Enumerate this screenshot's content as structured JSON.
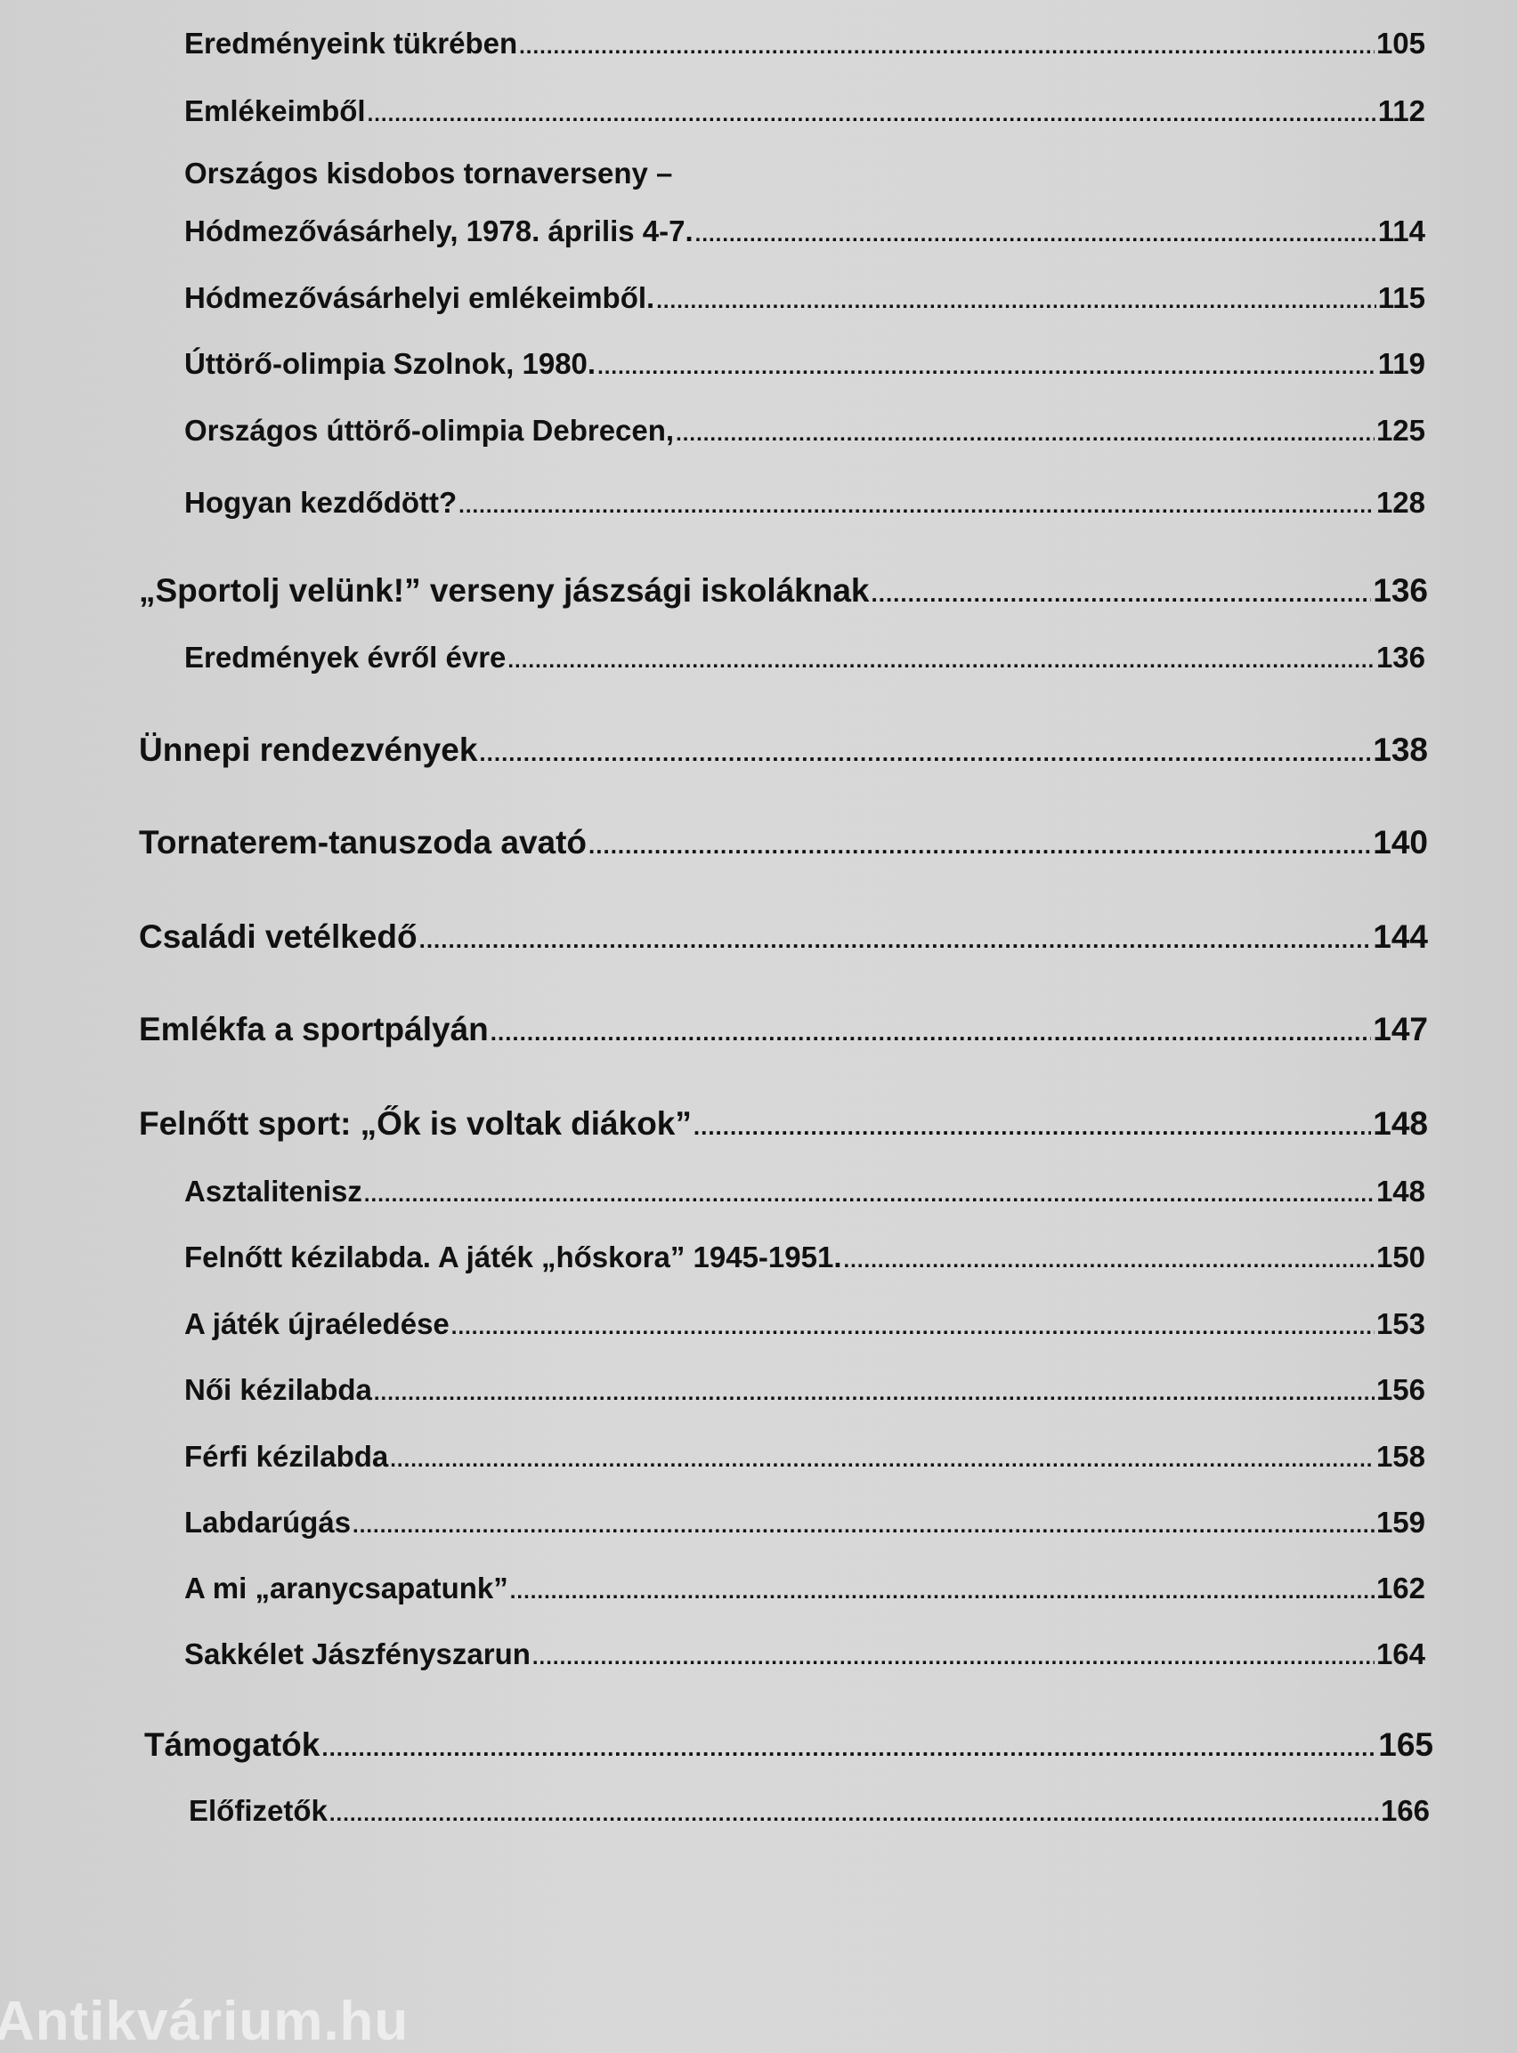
{
  "toc": [
    {
      "level": "sub",
      "title": "Eredményeink tükrében",
      "page": "105"
    },
    {
      "level": "sub",
      "title": "Emlékeimből",
      "page": "112"
    },
    {
      "level": "sub",
      "title": "Országos kisdobos tornaverseny –",
      "page": ""
    },
    {
      "level": "sub",
      "title": "Hódmezővásárhely, 1978. április 4-7.",
      "page": "114"
    },
    {
      "level": "sub",
      "title": "Hódmezővásárhelyi emlékeimből.",
      "page": "115"
    },
    {
      "level": "sub",
      "title": "Úttörő-olimpia Szolnok, 1980.",
      "page": "119"
    },
    {
      "level": "sub",
      "title": "Országos úttörő-olimpia Debrecen,",
      "page": "125"
    },
    {
      "level": "sub",
      "title": "Hogyan kezdődött?",
      "page": "128"
    },
    {
      "level": "main",
      "title": "„Sportolj velünk!” verseny jászsági iskoláknak",
      "page": "136"
    },
    {
      "level": "sub",
      "title": "Eredmények évről évre",
      "page": "136"
    },
    {
      "level": "main",
      "title": "Ünnepi rendezvények",
      "page": "138"
    },
    {
      "level": "main",
      "title": "Tornaterem-tanuszoda avató",
      "page": "140"
    },
    {
      "level": "main",
      "title": "Családi vetélkedő",
      "page": "144"
    },
    {
      "level": "main",
      "title": "Emlékfa a sportpályán",
      "page": "147"
    },
    {
      "level": "main",
      "title": "Felnőtt sport: „Ők is voltak diákok”",
      "page": "148"
    },
    {
      "level": "sub",
      "title": "Asztalitenisz",
      "page": "148"
    },
    {
      "level": "sub",
      "title": "Felnőtt kézilabda. A játék „hőskora” 1945-1951.",
      "page": "150"
    },
    {
      "level": "sub",
      "title": "A játék újraéledése",
      "page": "153"
    },
    {
      "level": "sub",
      "title": "Női kézilabda",
      "page": "156"
    },
    {
      "level": "sub",
      "title": "Férfi kézilabda",
      "page": "158"
    },
    {
      "level": "sub",
      "title": "Labdarúgás",
      "page": "159"
    },
    {
      "level": "sub",
      "title": "A mi „aranycsapatunk”",
      "page": "162"
    },
    {
      "level": "sub",
      "title": "Sakkélet Jászfényszarun",
      "page": "164"
    },
    {
      "level": "main",
      "title": "Támogatók",
      "page": "165"
    },
    {
      "level": "sub",
      "title": "Előfizetők",
      "page": "166"
    }
  ],
  "watermark": "Antikvárium.hu"
}
